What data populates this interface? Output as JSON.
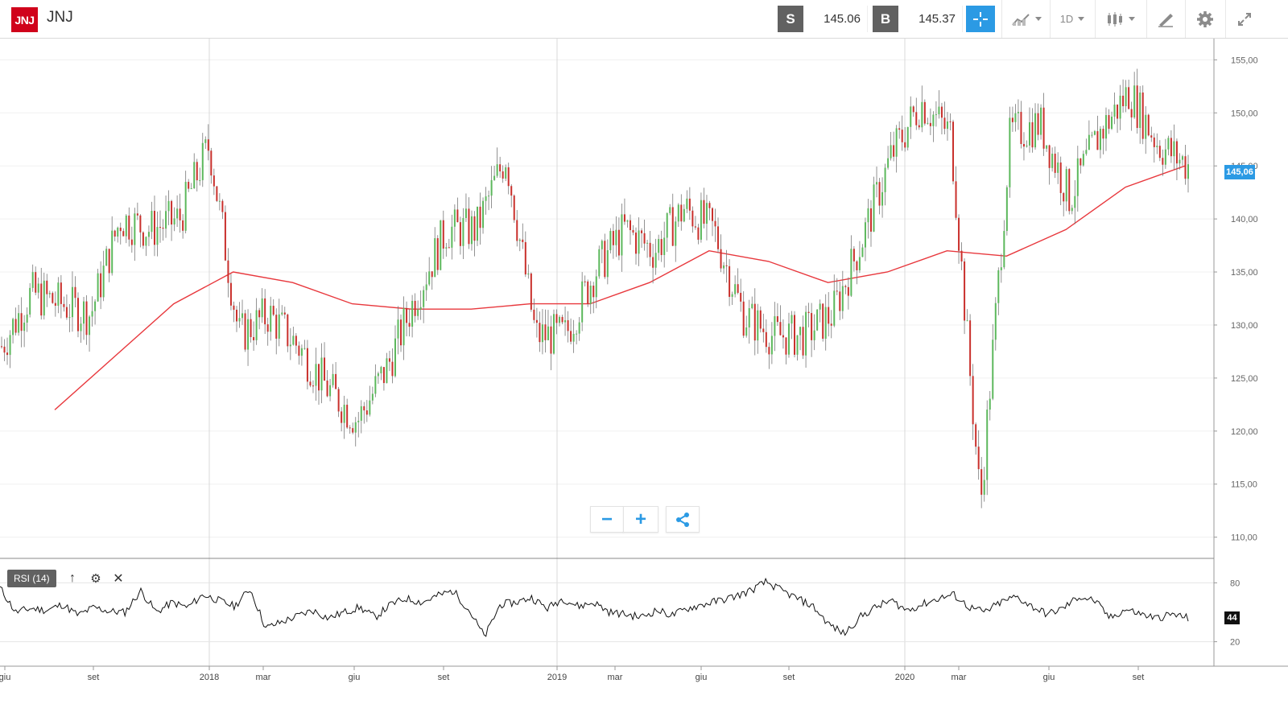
{
  "header": {
    "logo_text": "JNJ",
    "symbol": "JNJ",
    "sell_label": "S",
    "sell_price": "145.06",
    "buy_label": "B",
    "buy_price": "145.37",
    "timeframe": "1D",
    "icons": [
      "crosshair-icon",
      "line-chart-type-icon",
      "candlestick-icon",
      "draw-tool-icon",
      "gear-icon",
      "expand-icon"
    ]
  },
  "price_axis": {
    "ticks": [
      "155,00",
      "150,00",
      "145,00",
      "140,00",
      "135,00",
      "130,00",
      "125,00",
      "120,00",
      "115,00",
      "110,00"
    ],
    "current_price_tag": "145,06"
  },
  "rsi": {
    "label": "RSI (14)",
    "ticks": [
      "80",
      "20"
    ],
    "current_value": "44"
  },
  "time_axis": {
    "labels": [
      "giu",
      "set",
      "2018",
      "mar",
      "giu",
      "set",
      "2019",
      "mar",
      "giu",
      "set",
      "2020",
      "mar",
      "giu",
      "set"
    ]
  },
  "zoom": {
    "minus": "−",
    "plus": "+"
  },
  "colors": {
    "brand": "#d0021b",
    "accent": "#2b9ae4",
    "up": "#5cb85c",
    "down": "#c9302c",
    "ma": "#e8383d"
  },
  "chart_data": [
    {
      "type": "candlestick",
      "ticker": "JNJ",
      "ylim": [
        108,
        157
      ],
      "xticks": [
        "giu",
        "set",
        "2018",
        "mar",
        "giu",
        "set",
        "2019",
        "mar",
        "giu",
        "set",
        "2020",
        "mar",
        "giu",
        "set"
      ],
      "close_series": {
        "name": "JNJ",
        "points": [
          [
            "giu-2017",
            128
          ],
          [
            "lug-2017",
            133
          ],
          [
            "ago-2017",
            132
          ],
          [
            "set-2017",
            131
          ],
          [
            "ott-2017",
            140
          ],
          [
            "nov-2017",
            139
          ],
          [
            "dic-2017",
            140
          ],
          [
            "gen-2018",
            147
          ],
          [
            "feb-2018",
            129
          ],
          [
            "mar-2018",
            131
          ],
          [
            "apr-2018",
            128
          ],
          [
            "mag-2018",
            124
          ],
          [
            "giu-2018",
            121
          ],
          [
            "lug-2018",
            126
          ],
          [
            "ago-2018",
            133
          ],
          [
            "set-2018",
            139
          ],
          [
            "ott-2018",
            139
          ],
          [
            "nov-2018",
            146
          ],
          [
            "dic-2018",
            129
          ],
          [
            "gen-2019",
            129
          ],
          [
            "feb-2019",
            135
          ],
          [
            "mar-2019",
            139
          ],
          [
            "apr-2019",
            137
          ],
          [
            "mag-2019",
            141
          ],
          [
            "giu-2019",
            139
          ],
          [
            "lug-2019",
            131
          ],
          [
            "ago-2019",
            129
          ],
          [
            "set-2019",
            129
          ],
          [
            "ott-2019",
            131
          ],
          [
            "nov-2019",
            138
          ],
          [
            "dic-2019",
            146
          ],
          [
            "gen-2020",
            151
          ],
          [
            "feb-2020",
            148
          ],
          [
            "mar-2020",
            113
          ],
          [
            "apr-2020",
            148
          ],
          [
            "mag-2020",
            149
          ],
          [
            "giu-2020",
            142
          ],
          [
            "lug-2020",
            148
          ],
          [
            "ago-2020",
            152
          ],
          [
            "set-2020",
            147
          ],
          [
            "ott-2020",
            145.06
          ]
        ]
      },
      "moving_average": {
        "points": [
          [
            "lug-2017",
            122
          ],
          [
            "ott-2017",
            127
          ],
          [
            "gen-2018",
            132
          ],
          [
            "mar-2018",
            135
          ],
          [
            "mag-2018",
            134
          ],
          [
            "lug-2018",
            132
          ],
          [
            "set-2018",
            131.5
          ],
          [
            "nov-2018",
            131.5
          ],
          [
            "dic-2018",
            132
          ],
          [
            "feb-2019",
            132
          ],
          [
            "apr-2019",
            134
          ],
          [
            "giu-2019",
            137
          ],
          [
            "ago-2019",
            136
          ],
          [
            "ott-2019",
            134
          ],
          [
            "dic-2019",
            135
          ],
          [
            "feb-2020",
            137
          ],
          [
            "apr-2020",
            136.5
          ],
          [
            "giu-2020",
            139
          ],
          [
            "ago-2020",
            143
          ],
          [
            "ott-2020",
            145
          ]
        ]
      }
    },
    {
      "type": "line",
      "title": "RSI (14)",
      "ylim": [
        0,
        100
      ],
      "reference_levels": [
        80,
        20
      ],
      "values": [
        75,
        50,
        54,
        52,
        58,
        47,
        55,
        51,
        50,
        72,
        50,
        60,
        55,
        68,
        62,
        56,
        74,
        34,
        40,
        46,
        52,
        44,
        50,
        55,
        45,
        58,
        64,
        60,
        67,
        72,
        52,
        25,
        58,
        60,
        65,
        54,
        64,
        56,
        60,
        50,
        48,
        45,
        52,
        47,
        54,
        58,
        62,
        66,
        72,
        81,
        72,
        64,
        56,
        38,
        28,
        45,
        55,
        62,
        52,
        58,
        64,
        68,
        55,
        50,
        60,
        66,
        56,
        48,
        54,
        66,
        62,
        44,
        53,
        48,
        44,
        48,
        44
      ]
    }
  ]
}
